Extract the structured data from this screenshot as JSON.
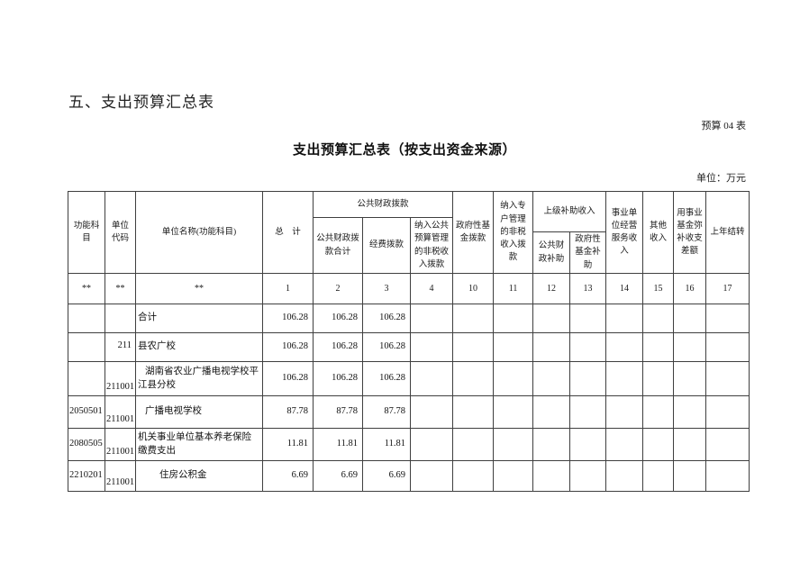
{
  "page": {
    "section_heading": "五、支出预算汇总表",
    "table_label": "预算 04 表",
    "title": "支出预算汇总表（按支出资金来源）",
    "unit_note": "单位：万元"
  },
  "colors": {
    "page_background": "#ffffff",
    "border": "#3f3f3f",
    "text": "#1a1a1a"
  },
  "table": {
    "header": {
      "func_subject": "功能科目",
      "unit_code": "单位代码",
      "unit_name": "单位名称(功能科目)",
      "total": "总　计",
      "public_finance_group": "公共财政拨款",
      "public_finance_total": "公共财政拨款合计",
      "fund_allocation": "经费拨款",
      "nontax_public_budget": "纳入公共预算管理的非税收入拨款",
      "gov_fund_allocation": "政府性基金拨款",
      "nontax_special_account": "纳入专户管理的非税收入拨款",
      "superior_subsidy_group": "上级补助收入",
      "public_finance_subsidy": "公共财政补助",
      "gov_fund_subsidy": "政府性基金补助",
      "business_service_income": "事业单位经营服务收入",
      "other_income": "其他收入",
      "career_fund_balance": "用事业基金弥补收支差额",
      "prev_year_carryover": "上年结转"
    },
    "index_row": [
      "**",
      "**",
      "**",
      "1",
      "2",
      "3",
      "4",
      "10",
      "11",
      "12",
      "13",
      "14",
      "15",
      "16",
      "17"
    ],
    "rows": [
      {
        "func_code": "",
        "unit_code": "",
        "unit_code_pos": "bottom",
        "name": "合计",
        "indent": 0,
        "values": [
          "106.28",
          "106.28",
          "106.28",
          "",
          "",
          "",
          "",
          "",
          "",
          "",
          "",
          ""
        ]
      },
      {
        "func_code": "",
        "unit_code": "211",
        "unit_code_pos": "middle",
        "name": "县农广校",
        "indent": 0,
        "values": [
          "106.28",
          "106.28",
          "106.28",
          "",
          "",
          "",
          "",
          "",
          "",
          "",
          "",
          ""
        ]
      },
      {
        "func_code": "",
        "unit_code": "211001",
        "unit_code_pos": "bottom",
        "name": "湖南省农业广播电视学校平江县分校",
        "indent": 1,
        "values": [
          "106.28",
          "106.28",
          "106.28",
          "",
          "",
          "",
          "",
          "",
          "",
          "",
          "",
          ""
        ]
      },
      {
        "func_code": "2050501",
        "unit_code": "211001",
        "unit_code_pos": "bottom",
        "name": "广播电视学校",
        "indent": 1,
        "values": [
          "87.78",
          "87.78",
          "87.78",
          "",
          "",
          "",
          "",
          "",
          "",
          "",
          "",
          ""
        ]
      },
      {
        "func_code": "2080505",
        "unit_code": "211001",
        "unit_code_pos": "bottom",
        "name": "机关事业单位基本养老保险缴费支出",
        "indent": 0,
        "values": [
          "11.81",
          "11.81",
          "11.81",
          "",
          "",
          "",
          "",
          "",
          "",
          "",
          "",
          ""
        ]
      },
      {
        "func_code": "2210201",
        "unit_code": "211001",
        "unit_code_pos": "bottom",
        "name": "住房公积金",
        "indent": 3,
        "values": [
          "6.69",
          "6.69",
          "6.69",
          "",
          "",
          "",
          "",
          "",
          "",
          "",
          "",
          ""
        ]
      }
    ]
  }
}
